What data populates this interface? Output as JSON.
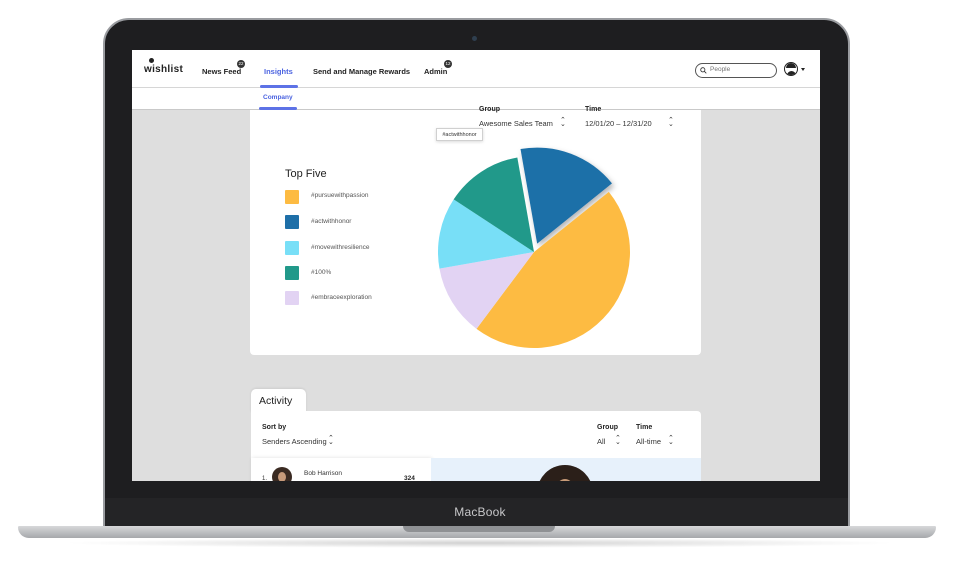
{
  "device": {
    "brand": "MacBook"
  },
  "nav": {
    "logo": "wishlist",
    "items": [
      {
        "label": "News Feed",
        "badge": "22"
      },
      {
        "label": "Insights",
        "active": true
      },
      {
        "label": "Send and Manage Rewards"
      },
      {
        "label": "Admin",
        "badge": "12"
      }
    ],
    "search_placeholder": "People"
  },
  "subnav": {
    "items": [
      {
        "label": "Company",
        "active": true
      }
    ]
  },
  "insights": {
    "filters": {
      "group_label": "Group",
      "group_value": "Awesome Sales Team",
      "time_label": "Time",
      "time_value": "12/01/20 – 12/31/20"
    },
    "legend_title": "Top Five",
    "legend": [
      {
        "label": "#pursuewithpassion",
        "color": "#fdbb42"
      },
      {
        "label": "#actwithhonor",
        "color": "#1e6fa8"
      },
      {
        "label": "#movewithresilience",
        "color": "#78dff7"
      },
      {
        "label": "#100%",
        "color": "#21998a"
      },
      {
        "label": "#embraceexploration",
        "color": "#e2d3f3"
      }
    ],
    "tooltip": "#actwithhonor"
  },
  "chart_data": {
    "type": "pie",
    "title": "Top Five",
    "series": [
      {
        "name": "#pursuewithpassion",
        "value": 46
      },
      {
        "name": "#actwithhonor",
        "value": 17
      },
      {
        "name": "#movewithresilience",
        "value": 12
      },
      {
        "name": "#100%",
        "value": 13
      },
      {
        "name": "#embraceexploration",
        "value": 12
      }
    ],
    "highlighted": "#actwithhonor",
    "legend_position": "left"
  },
  "activity": {
    "tab_label": "Activity",
    "sort_label": "Sort by",
    "sort_value": "Senders Ascending",
    "group_label": "Group",
    "group_value": "All",
    "time_label": "Time",
    "time_value": "All-time",
    "rows": [
      {
        "rank": "1.",
        "name": "Bob Harrison",
        "count": "324"
      }
    ]
  }
}
